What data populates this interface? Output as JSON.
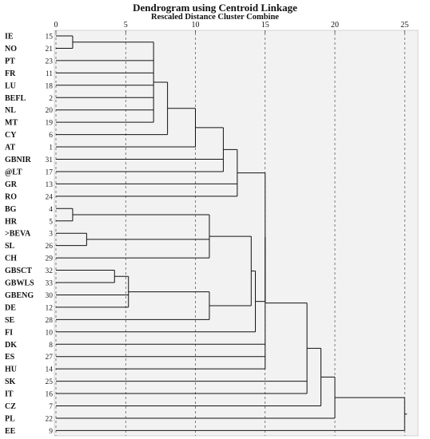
{
  "chart_data": {
    "type": "dendrogram",
    "title": "Dendrogram using Centroid Linkage",
    "subtitle": "Rescaled Distance Cluster Combine",
    "xlim": [
      0,
      25
    ],
    "x_ticks": [
      0,
      5,
      10,
      15,
      20,
      25
    ],
    "leaves": [
      {
        "label": "IE",
        "num": "15"
      },
      {
        "label": "NO",
        "num": "21"
      },
      {
        "label": "PT",
        "num": "23"
      },
      {
        "label": "FR",
        "num": "11"
      },
      {
        "label": "LU",
        "num": "18"
      },
      {
        "label": "BEFL",
        "num": "2"
      },
      {
        "label": "NL",
        "num": "20"
      },
      {
        "label": "MT",
        "num": "19"
      },
      {
        "label": "CY",
        "num": "6"
      },
      {
        "label": "AT",
        "num": "1"
      },
      {
        "label": "GBNIR",
        "num": "31"
      },
      {
        "label": "@LT",
        "num": "17"
      },
      {
        "label": "GR",
        "num": "13"
      },
      {
        "label": "RO",
        "num": "24"
      },
      {
        "label": "BG",
        "num": "4"
      },
      {
        "label": "HR",
        "num": "5"
      },
      {
        "label": ">BEVA",
        "num": "3"
      },
      {
        "label": "SL",
        "num": "26"
      },
      {
        "label": "CH",
        "num": "29"
      },
      {
        "label": "GBSCT",
        "num": "32"
      },
      {
        "label": "GBWLS",
        "num": "33"
      },
      {
        "label": "GBENG",
        "num": "30"
      },
      {
        "label": "DE",
        "num": "12"
      },
      {
        "label": "SE",
        "num": "28"
      },
      {
        "label": "FI",
        "num": "10"
      },
      {
        "label": "DK",
        "num": "8"
      },
      {
        "label": "ES",
        "num": "27"
      },
      {
        "label": "HU",
        "num": "14"
      },
      {
        "label": "SK",
        "num": "25"
      },
      {
        "label": "IT",
        "num": "16"
      },
      {
        "label": "CZ",
        "num": "7"
      },
      {
        "label": "PL",
        "num": "22"
      },
      {
        "label": "EE",
        "num": "9"
      }
    ],
    "merges": [
      {
        "children": [
          0,
          1
        ],
        "height": 1.2
      },
      {
        "children": [
          2,
          3,
          4,
          5,
          6,
          7,
          "m0"
        ],
        "height": 7.0
      },
      {
        "children": [
          "m1",
          8
        ],
        "height": 8.0
      },
      {
        "children": [
          "m2",
          9
        ],
        "height": 10.0
      },
      {
        "children": [
          "m3",
          10,
          11
        ],
        "height": 12.0
      },
      {
        "children": [
          "m4",
          12,
          13
        ],
        "height": 13.0
      },
      {
        "children": [
          14,
          15
        ],
        "height": 1.2
      },
      {
        "children": [
          16,
          17
        ],
        "height": 2.2
      },
      {
        "children": [
          "m6",
          "m7",
          18
        ],
        "height": 11.0
      },
      {
        "children": [
          19,
          20
        ],
        "height": 4.2
      },
      {
        "children": [
          "m9",
          21,
          22
        ],
        "height": 5.2
      },
      {
        "children": [
          "m10",
          23
        ],
        "height": 11.0
      },
      {
        "children": [
          "m8",
          "m11"
        ],
        "height": 14.0
      },
      {
        "children": [
          "m12",
          24
        ],
        "height": 14.3
      },
      {
        "children": [
          "m5",
          "m13"
        ],
        "height": 15.0
      },
      {
        "children": [
          "m14",
          25,
          26,
          27
        ],
        "height": 15.0
      },
      {
        "children": [
          "m15",
          28,
          29
        ],
        "height": 18.0
      },
      {
        "children": [
          "m16",
          30
        ],
        "height": 19.0
      },
      {
        "children": [
          "m17",
          31
        ],
        "height": 20.0
      },
      {
        "children": [
          "m18",
          32
        ],
        "height": 25.0
      }
    ]
  }
}
